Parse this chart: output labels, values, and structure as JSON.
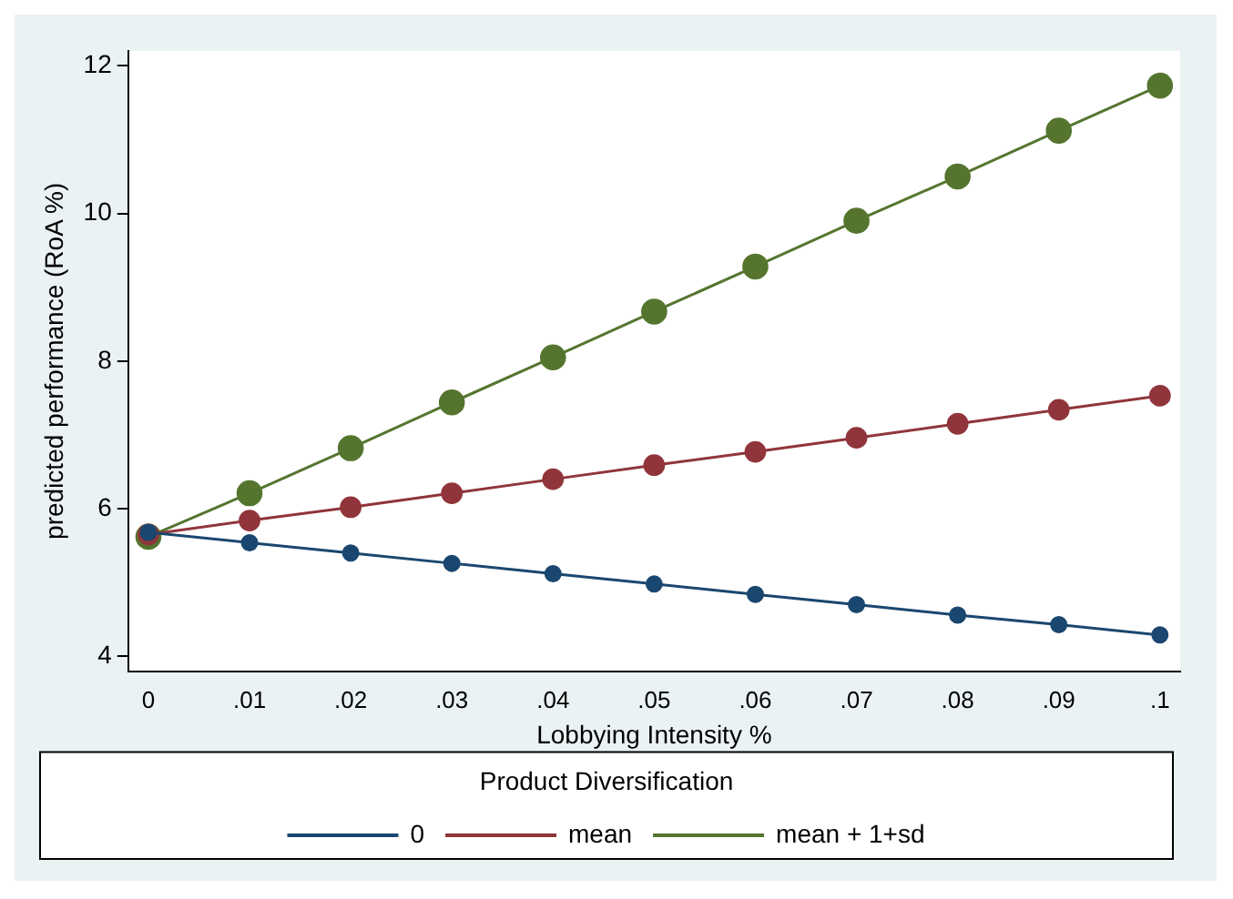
{
  "chart_data": {
    "type": "line",
    "xlabel": "Lobbying Intensity %",
    "ylabel": "predicted performance (RoA %)",
    "legend_title": "Product Diversification",
    "x": [
      0,
      0.01,
      0.02,
      0.03,
      0.04,
      0.05,
      0.06,
      0.07,
      0.08,
      0.09,
      0.1
    ],
    "series": [
      {
        "name": "0",
        "color": "#1a476f",
        "values": [
          5.68,
          5.54,
          5.4,
          5.26,
          5.12,
          4.98,
          4.84,
          4.7,
          4.56,
          4.43,
          4.29
        ]
      },
      {
        "name": "mean",
        "color": "#90353b",
        "values": [
          5.65,
          5.84,
          6.02,
          6.21,
          6.4,
          6.59,
          6.77,
          6.96,
          7.15,
          7.34,
          7.53
        ]
      },
      {
        "name": "mean + 1+sd",
        "color": "#55752f",
        "values": [
          5.62,
          6.21,
          6.82,
          7.44,
          8.05,
          8.67,
          9.28,
          9.9,
          10.5,
          11.12,
          11.73
        ]
      }
    ],
    "xlim": [
      -0.002,
      0.102
    ],
    "ylim": [
      3.8,
      12.2
    ],
    "xticks": [
      0,
      {
        "value": 0.01,
        "label": ".01"
      },
      {
        "value": 0.02,
        "label": ".02"
      },
      {
        "value": 0.03,
        "label": ".03"
      },
      {
        "value": 0.04,
        "label": ".04"
      },
      {
        "value": 0.05,
        "label": ".05"
      },
      {
        "value": 0.06,
        "label": ".06"
      },
      {
        "value": 0.07,
        "label": ".07"
      },
      {
        "value": 0.08,
        "label": ".08"
      },
      {
        "value": 0.09,
        "label": ".09"
      },
      {
        "value": 0.1,
        "label": ".1"
      }
    ],
    "yticks": [
      4,
      6,
      8,
      10,
      12
    ],
    "grid": false,
    "legend": "bottom",
    "marker": "circle",
    "line_style": "solid"
  }
}
